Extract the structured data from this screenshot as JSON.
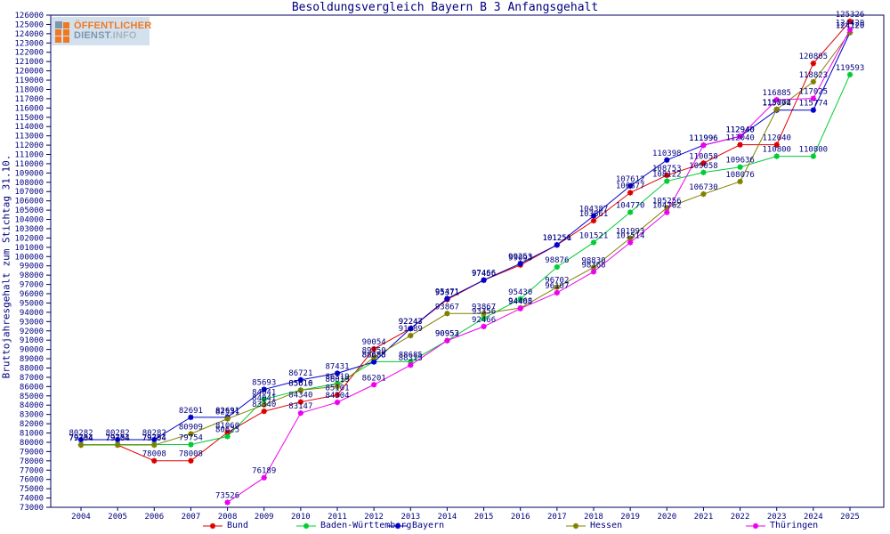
{
  "logo": {
    "line1": "ÖFFENTLICHER",
    "line2": "DIENST",
    "line2_suffix": ".INFO"
  },
  "header": {
    "title": "Besoldungsvergleich Bayern B 3 Anfangsgehalt"
  },
  "axes": {
    "y_label": "Bruttojahresgehalt zum Stichtag 31.10."
  },
  "colors": {
    "text": "#000080",
    "frame": "#000060",
    "background": "#ffffff",
    "logo_orange": "#f07820",
    "logo_slate": "#7d97aa"
  },
  "chart_data": {
    "type": "line",
    "title": "Besoldungsvergleich Bayern B 3 Anfangsgehalt",
    "xlabel": "",
    "ylabel": "Bruttojahresgehalt zum Stichtag 31.10.",
    "ylim": [
      73000,
      126000
    ],
    "ytick_step": 1000,
    "grid": false,
    "legend_position": "bottom",
    "point_labels": true,
    "x": [
      2004,
      2005,
      2006,
      2007,
      2008,
      2009,
      2010,
      2011,
      2012,
      2013,
      2014,
      2015,
      2016,
      2017,
      2018,
      2019,
      2020,
      2021,
      2022,
      2023,
      2024,
      2025
    ],
    "series": [
      {
        "name": "Bund",
        "color": "#dd0000",
        "values": [
          79704,
          79704,
          78008,
          78008,
          81060,
          83340,
          84340,
          85101,
          90054,
          92243,
          95371,
          97456,
          99093,
          101251,
          103861,
          106877,
          108753,
          110058,
          112040,
          112040,
          120805,
          125326
        ]
      },
      {
        "name": "Baden-Württemberg",
        "color": "#00cc33",
        "values": [
          79754,
          79754,
          79754,
          79754,
          80625,
          84641,
          85616,
          86319,
          88685,
          88685,
          90952,
          93356,
          95430,
          98876,
          101521,
          104770,
          108122,
          109058,
          109636,
          110800,
          110800,
          119593
        ]
      },
      {
        "name": "Bayern",
        "color": "#0000cc",
        "values": [
          80282,
          80282,
          80282,
          82691,
          82691,
          85693,
          86721,
          87431,
          88658,
          92247,
          95471,
          97466,
          99253,
          101256,
          104387,
          107612,
          110398,
          111996,
          112940,
          115774,
          115774,
          124120
        ]
      },
      {
        "name": "Hessen",
        "color": "#808000",
        "values": [
          79704,
          79704,
          79704,
          80909,
          82531,
          84041,
          85610,
          86019,
          89150,
          91489,
          93867,
          93867,
          94468,
          96702,
          98830,
          101993,
          105256,
          106730,
          108076,
          115862,
          118823,
          124120
        ]
      },
      {
        "name": "Thüringen",
        "color": "#ee00ee",
        "values": [
          null,
          null,
          null,
          null,
          73526,
          76189,
          83147,
          84304,
          86201,
          88315,
          90953,
          92466,
          94405,
          96107,
          98366,
          101514,
          104762,
          111996,
          112940,
          116885,
          117025,
          124420
        ]
      }
    ]
  }
}
